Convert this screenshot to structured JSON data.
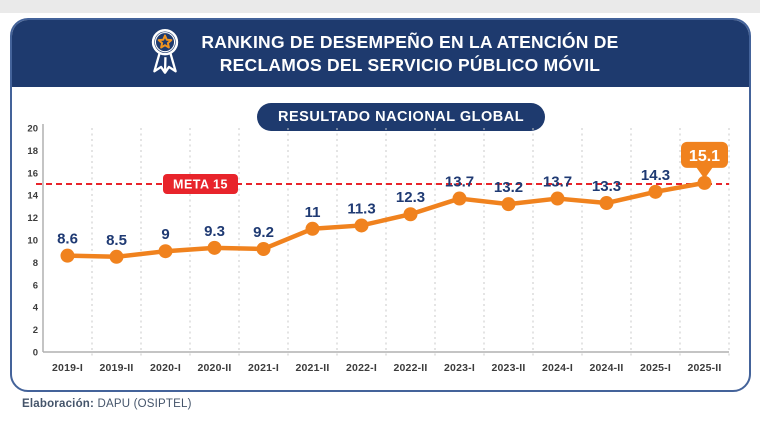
{
  "header": {
    "title_line1": "RANKING DE DESEMPEÑO EN LA ATENCIÓN DE",
    "title_line2": "RECLAMOS DEL SERVICIO PÚBLICO MÓVIL",
    "icon": "medal-ribbon-icon",
    "bg_color": "#1e3a6e"
  },
  "chart_data": {
    "type": "line",
    "title": "RESULTADO NACIONAL GLOBAL",
    "categories": [
      "2019-I",
      "2019-II",
      "2020-I",
      "2020-II",
      "2021-I",
      "2021-II",
      "2022-I",
      "2022-II",
      "2023-I",
      "2023-II",
      "2024-I",
      "2024-II",
      "2025-I",
      "2025-II"
    ],
    "values": [
      8.6,
      8.5,
      9,
      9.3,
      9.2,
      11,
      11.3,
      12.3,
      13.7,
      13.2,
      13.7,
      13.3,
      14.3,
      15.1
    ],
    "point_labels": [
      "8.6",
      "8.5",
      "9",
      "9.3",
      "9.2",
      "11",
      "11.3",
      "12.3",
      "13.7",
      "13.2",
      "13.7",
      "13.3",
      "14.3",
      "15.1"
    ],
    "xlabel": "",
    "ylabel": "",
    "ylim": [
      0,
      20
    ],
    "ytick_step": 2,
    "grid": "vertical-dashed",
    "legend": "none",
    "goal_line": {
      "value": 15,
      "label": "META 15",
      "color": "#e8242b"
    },
    "line_color": "#f0821e",
    "point_color": "#f0821e",
    "value_label_color": "#1f3a73",
    "axis_label_color": "#3c3c3c",
    "gridline_color": "#c8c8c8",
    "highlight_last": {
      "label": "15.1",
      "bubble_color": "#f0821e",
      "text_color": "#ffffff"
    }
  },
  "footer": {
    "label_bold": "Elaboración:",
    "label_rest": " DAPU (OSIPTEL)"
  }
}
